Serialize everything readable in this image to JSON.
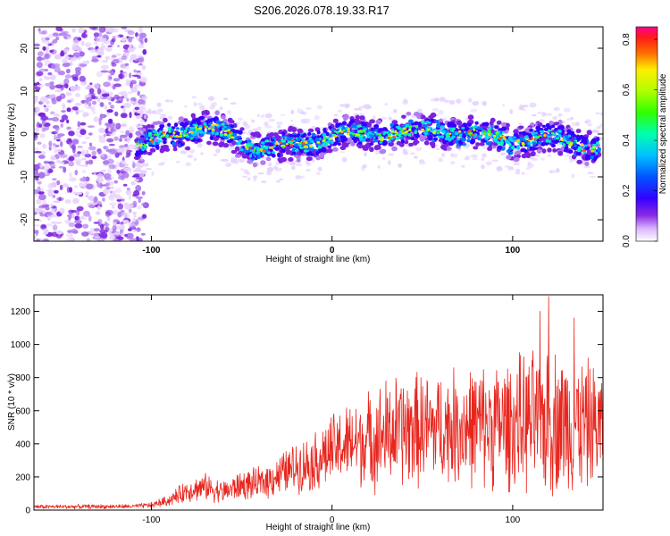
{
  "title": "S206.2026.078.19.33.R17",
  "colors": {
    "snr_line": "#e8261e",
    "axis": "#000000",
    "background": "#ffffff"
  },
  "chart_data": [
    {
      "type": "heatmap",
      "name": "spectrogram",
      "xlabel": "Height of straight line (km)",
      "ylabel": "Frequency (Hz)",
      "xlim": [
        -165,
        150
      ],
      "ylim": [
        -25,
        25
      ],
      "x_ticks": [
        -100,
        0,
        100
      ],
      "x_tick_labels": [
        "-100",
        "0",
        "100"
      ],
      "y_ticks": [
        -20,
        -10,
        0,
        10,
        20
      ],
      "y_tick_labels": [
        "-20",
        "-10",
        "0",
        "10",
        "20"
      ],
      "ridge": {
        "description_points_x": [
          -105,
          -90,
          -70,
          -55,
          -45,
          -30,
          -15,
          0,
          20,
          40,
          60,
          80,
          100,
          120,
          148
        ],
        "center_freq": [
          -3,
          0.5,
          1,
          0,
          -3,
          -3.5,
          -2,
          -0.5,
          0,
          0.5,
          1,
          0,
          -1.5,
          -1,
          -3
        ]
      },
      "colorbar": {
        "label": "Normalized spectral amplitude",
        "range": [
          0.0,
          0.85
        ],
        "ticks": [
          0.0,
          0.2,
          0.4,
          0.6,
          0.8
        ],
        "tick_labels": [
          "0.0",
          "0.2",
          "0.4",
          "0.6",
          "0.8"
        ]
      }
    },
    {
      "type": "line",
      "name": "snr",
      "xlabel": "Height of straight line (km)",
      "ylabel": "SNR (10 * v/v)",
      "xlim": [
        -165,
        150
      ],
      "ylim": [
        0,
        1300
      ],
      "x_ticks": [
        -100,
        0,
        100
      ],
      "x_tick_labels": [
        "-100",
        "0",
        "100"
      ],
      "y_ticks": [
        0,
        200,
        400,
        600,
        800,
        1000,
        1200
      ],
      "y_tick_labels": [
        "0",
        "200",
        "400",
        "600",
        "800",
        "1000",
        "1200"
      ],
      "envelope": {
        "x": [
          -165,
          -110,
          -100,
          -90,
          -80,
          -70,
          -60,
          -50,
          -40,
          -30,
          -20,
          -10,
          0,
          10,
          20,
          30,
          40,
          60,
          80,
          100,
          120,
          140,
          150
        ],
        "mean": [
          20,
          22,
          30,
          60,
          120,
          140,
          110,
          150,
          160,
          210,
          260,
          290,
          360,
          400,
          420,
          460,
          480,
          500,
          510,
          520,
          540,
          520,
          500
        ],
        "amp": [
          15,
          15,
          20,
          40,
          80,
          90,
          80,
          100,
          110,
          140,
          170,
          200,
          250,
          280,
          330,
          380,
          400,
          380,
          420,
          450,
          520,
          450,
          400
        ]
      },
      "peaks": [
        {
          "x": 120,
          "y": 1290
        },
        {
          "x": 115,
          "y": 1200
        },
        {
          "x": 134,
          "y": 1160
        }
      ]
    }
  ]
}
